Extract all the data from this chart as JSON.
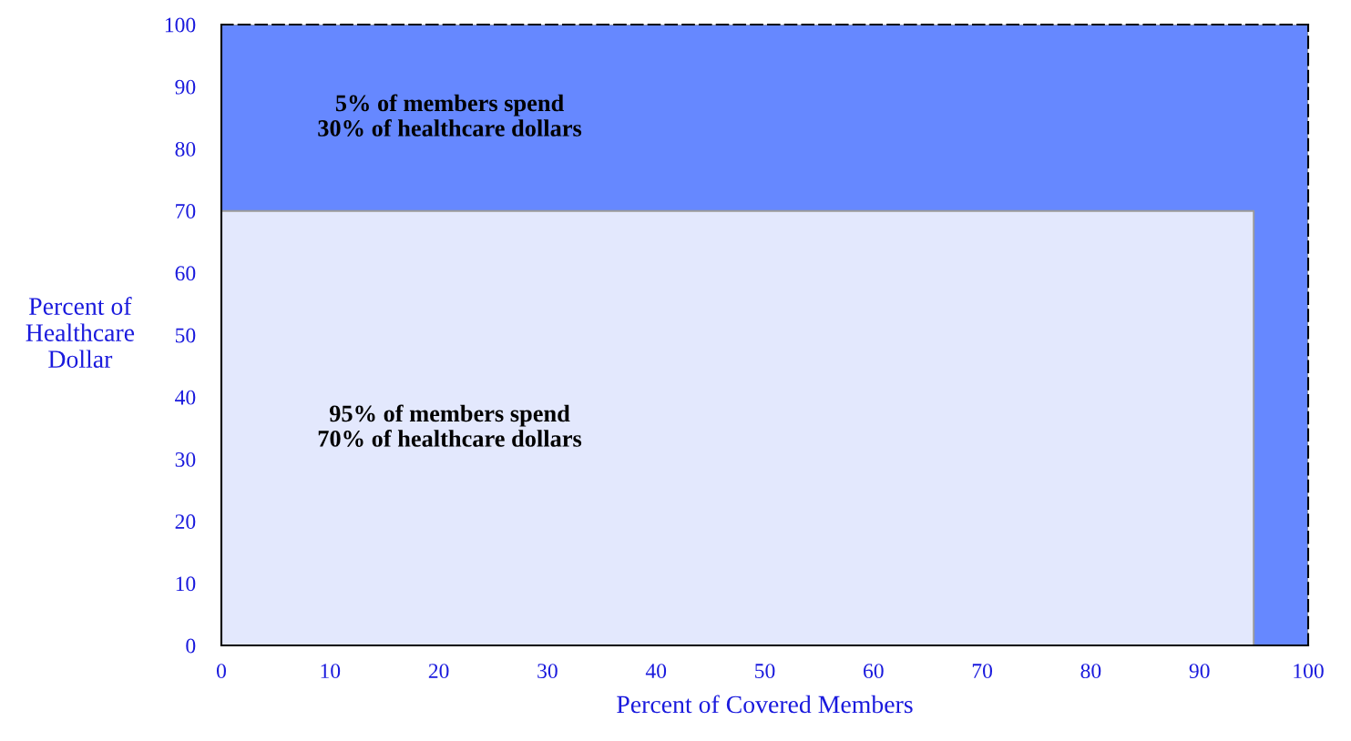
{
  "chart_data": {
    "type": "area",
    "stacked": true,
    "xlabel": "Percent of Covered Members",
    "ylabel": "Percent of\nHealthcare\nDollar",
    "x": [
      0,
      95,
      95,
      100
    ],
    "series": [
      {
        "color": "#e3e8fd",
        "values": [
          70,
          70,
          0,
          0
        ]
      },
      {
        "color": "#6688ff",
        "values": [
          30,
          30,
          100,
          100
        ]
      }
    ],
    "xlim": [
      0,
      100
    ],
    "xticks": [
      0,
      10,
      20,
      30,
      40,
      50,
      60,
      70,
      80,
      90,
      100
    ],
    "ylim": [
      0,
      100
    ],
    "yticks": [
      0,
      10,
      20,
      30,
      40,
      50,
      60,
      70,
      80,
      90,
      100
    ],
    "legend": false,
    "annotations": [
      "5% of members spend\n30% of healthcare dollars",
      "95% of members spend\n70% of healthcare dollars"
    ]
  }
}
